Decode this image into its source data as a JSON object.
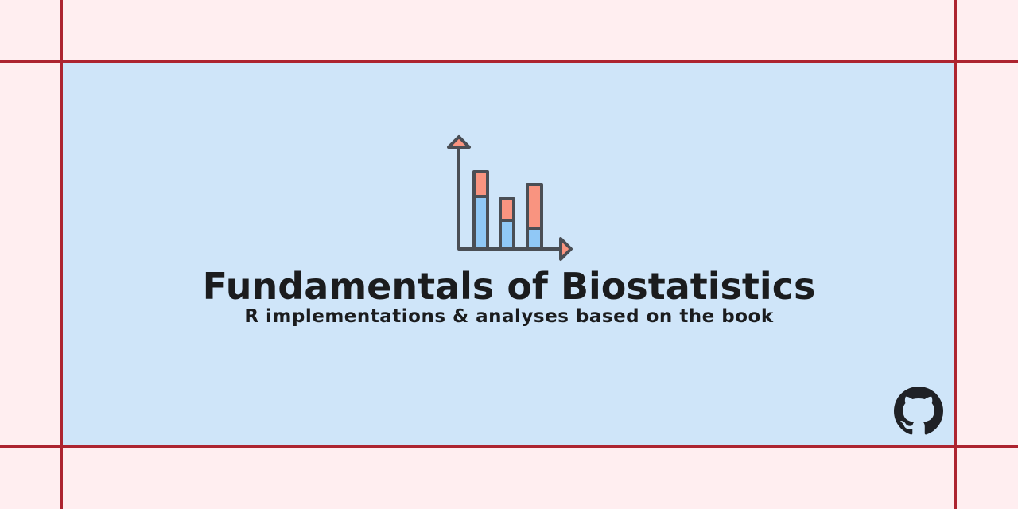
{
  "banner": {
    "title": "Fundamentals of Biostatistics",
    "subtitle": "R implementations & analyses based on the book"
  },
  "icons": {
    "logo": "stacked-bar-chart-icon",
    "repo_link": "github-icon"
  },
  "colors": {
    "page_background": "#ffeef0",
    "panel_background": "#cfe5f9",
    "guide_lines": "#ad2430",
    "text": "#1b1c1e",
    "icon_stroke": "#4a4e55",
    "bar_top": "#f99480",
    "bar_bottom": "#90c8f6",
    "github_mark": "#1f2126"
  }
}
